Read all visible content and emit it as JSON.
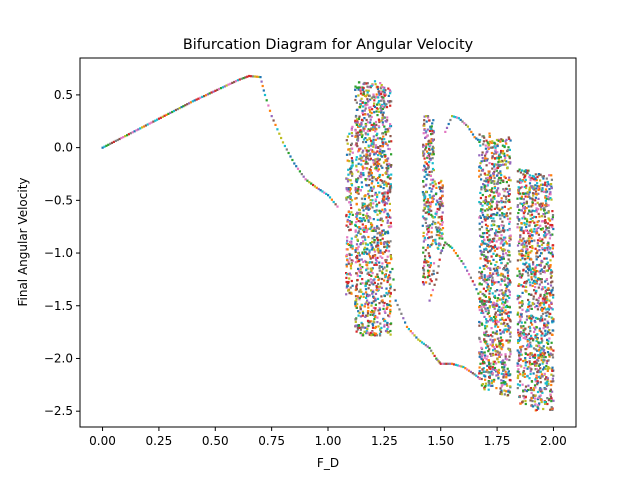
{
  "chart_data": {
    "type": "scatter",
    "title": "Bifurcation Diagram for Angular Velocity",
    "xlabel": "F_D",
    "ylabel": "Final Angular Velocity",
    "xlim": [
      -0.1,
      2.1
    ],
    "ylim": [
      -2.65,
      0.85
    ],
    "x_ticks": [
      0.0,
      0.25,
      0.5,
      0.75,
      1.0,
      1.25,
      1.5,
      1.75,
      2.0
    ],
    "x_tick_labels": [
      "0.00",
      "0.25",
      "0.50",
      "0.75",
      "1.00",
      "1.25",
      "1.50",
      "1.75",
      "2.00"
    ],
    "y_ticks": [
      0.5,
      0.0,
      -0.5,
      -1.0,
      -1.5,
      -2.0,
      -2.5
    ],
    "y_tick_labels": [
      "0.5",
      "0.0",
      "−0.5",
      "−1.0",
      "−1.5",
      "−2.0",
      "−2.5"
    ],
    "grid": false,
    "legend": "none",
    "colors": [
      "#1f77b4",
      "#ff7f0e",
      "#2ca02c",
      "#d62728",
      "#9467bd",
      "#8c564b",
      "#e377c2",
      "#7f7f7f",
      "#bcbd22",
      "#17becf"
    ],
    "curves": [
      {
        "x": [
          0.0,
          0.1,
          0.2,
          0.3,
          0.4,
          0.5,
          0.6,
          0.65,
          0.7,
          0.72,
          0.75,
          0.8,
          0.85,
          0.9,
          0.95,
          1.0,
          1.05
        ],
        "y": [
          0.0,
          0.11,
          0.22,
          0.33,
          0.44,
          0.54,
          0.64,
          0.68,
          0.67,
          0.5,
          0.3,
          0.05,
          -0.15,
          -0.3,
          -0.38,
          -0.45,
          -0.58
        ]
      },
      {
        "x": [
          1.28,
          1.3,
          1.35,
          1.4,
          1.45,
          1.48,
          1.5,
          1.55,
          1.6,
          1.65,
          1.68
        ],
        "y": [
          -1.05,
          -1.45,
          -1.7,
          -1.82,
          -1.9,
          -2.0,
          -2.05,
          -2.05,
          -2.08,
          -2.15,
          -2.2
        ]
      },
      {
        "x": [
          1.45,
          1.48,
          1.5,
          1.52,
          1.55
        ],
        "y": [
          -1.45,
          -1.25,
          -1.0,
          -0.9,
          -0.95
        ]
      },
      {
        "x": [
          1.52,
          1.55,
          1.58,
          1.62,
          1.65,
          1.68
        ],
        "y": [
          0.15,
          0.3,
          0.28,
          0.2,
          0.1,
          0.05
        ]
      },
      {
        "x": [
          1.55,
          1.6,
          1.65,
          1.7,
          1.75
        ],
        "y": [
          -0.95,
          -1.1,
          -1.3,
          -1.55,
          -1.7
        ]
      }
    ],
    "chaotic_bands": [
      {
        "x": [
          1.08,
          1.11
        ],
        "y": [
          -1.4,
          0.2
        ]
      },
      {
        "x": [
          1.12,
          1.24
        ],
        "y": [
          -1.78,
          0.63
        ]
      },
      {
        "x": [
          1.24,
          1.28
        ],
        "y": [
          -1.78,
          0.58
        ]
      },
      {
        "x": [
          1.42,
          1.47
        ],
        "y": [
          -1.3,
          0.32
        ]
      },
      {
        "x": [
          1.47,
          1.51
        ],
        "y": [
          -1.0,
          -0.3
        ]
      },
      {
        "x": [
          1.67,
          1.74
        ],
        "y": [
          -2.3,
          0.14
        ]
      },
      {
        "x": [
          1.74,
          1.81
        ],
        "y": [
          -2.35,
          0.1
        ]
      },
      {
        "x": [
          1.84,
          1.9
        ],
        "y": [
          -2.45,
          -0.2
        ]
      },
      {
        "x": [
          1.9,
          2.0
        ],
        "y": [
          -2.5,
          -0.25
        ]
      }
    ]
  }
}
